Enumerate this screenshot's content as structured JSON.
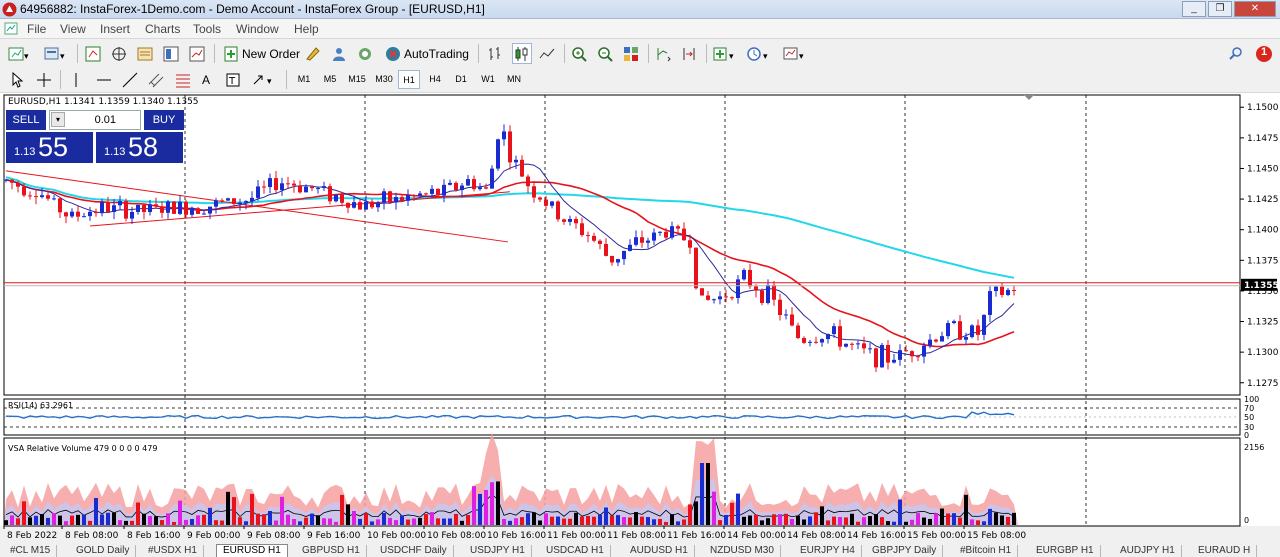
{
  "window": {
    "title": "64956882: InstaForex-1Demo.com - Demo Account - InstaForex Group - [EURUSD,H1]",
    "controls": [
      "_",
      "❐",
      "✕"
    ]
  },
  "menu": [
    "File",
    "View",
    "Insert",
    "Charts",
    "Tools",
    "Window",
    "Help"
  ],
  "toolbar": {
    "new_order_label": "New Order",
    "autotrading_label": "AutoTrading",
    "notification_count": "1"
  },
  "timeframes": [
    "M1",
    "M5",
    "M15",
    "M30",
    "H1",
    "H4",
    "D1",
    "W1",
    "MN"
  ],
  "active_timeframe": "H1",
  "chart": {
    "header": "EURUSD,H1  1.1341 1.1359 1.1340 1.1355",
    "current_price": "1.1355",
    "price_ticks": [
      "1.1500",
      "1.1475",
      "1.1450",
      "1.1425",
      "1.1400",
      "1.1375",
      "1.1350",
      "1.1325",
      "1.1300",
      "1.1275"
    ],
    "time_ticks": [
      "8 Feb 2022",
      "8 Feb 08:00",
      "8 Feb 16:00",
      "9 Feb 00:00",
      "9 Feb 08:00",
      "9 Feb 16:00",
      "10 Feb 00:00",
      "10 Feb 08:00",
      "10 Feb 16:00",
      "11 Feb 00:00",
      "11 Feb 08:00",
      "11 Feb 16:00",
      "14 Feb 00:00",
      "14 Feb 08:00",
      "14 Feb 16:00",
      "15 Feb 00:00",
      "15 Feb 08:00"
    ],
    "colors": {
      "bull": "#1a2bd0",
      "bear": "#e8121c",
      "ma_fast": "#2a2a9a",
      "ma_mid": "#e8121c",
      "ma_slow": "#22d8e8",
      "rsi": "#1e6fd0"
    }
  },
  "trade_panel": {
    "sell_label": "SELL",
    "buy_label": "BUY",
    "lot": "0.01",
    "bid_small": "1.13",
    "bid_big": "55",
    "ask_small": "1.13",
    "ask_big": "58"
  },
  "rsi": {
    "label": "RSI(14) 63.2961",
    "levels": [
      "100",
      "70",
      "50",
      "30",
      "0"
    ]
  },
  "volume": {
    "label": "VSA Relative Volume 479 0 0 0 0 479",
    "max_label": "2156",
    "min_label": "0"
  },
  "tabs": [
    "#CL M15",
    "GOLD Daily",
    "#USDX H1",
    "EURUSD H1",
    "GBPUSD H1",
    "USDCHF Daily",
    "USDJPY H1",
    "USDCAD H1",
    "AUDUSD H1",
    "NZDUSD M30",
    "EURJPY H4",
    "GBPJPY Daily",
    "#Bitcoin H1",
    "EURGBP H1",
    "AUDJPY H1",
    "EURAUD H"
  ],
  "active_tab": "EURUSD H1"
}
